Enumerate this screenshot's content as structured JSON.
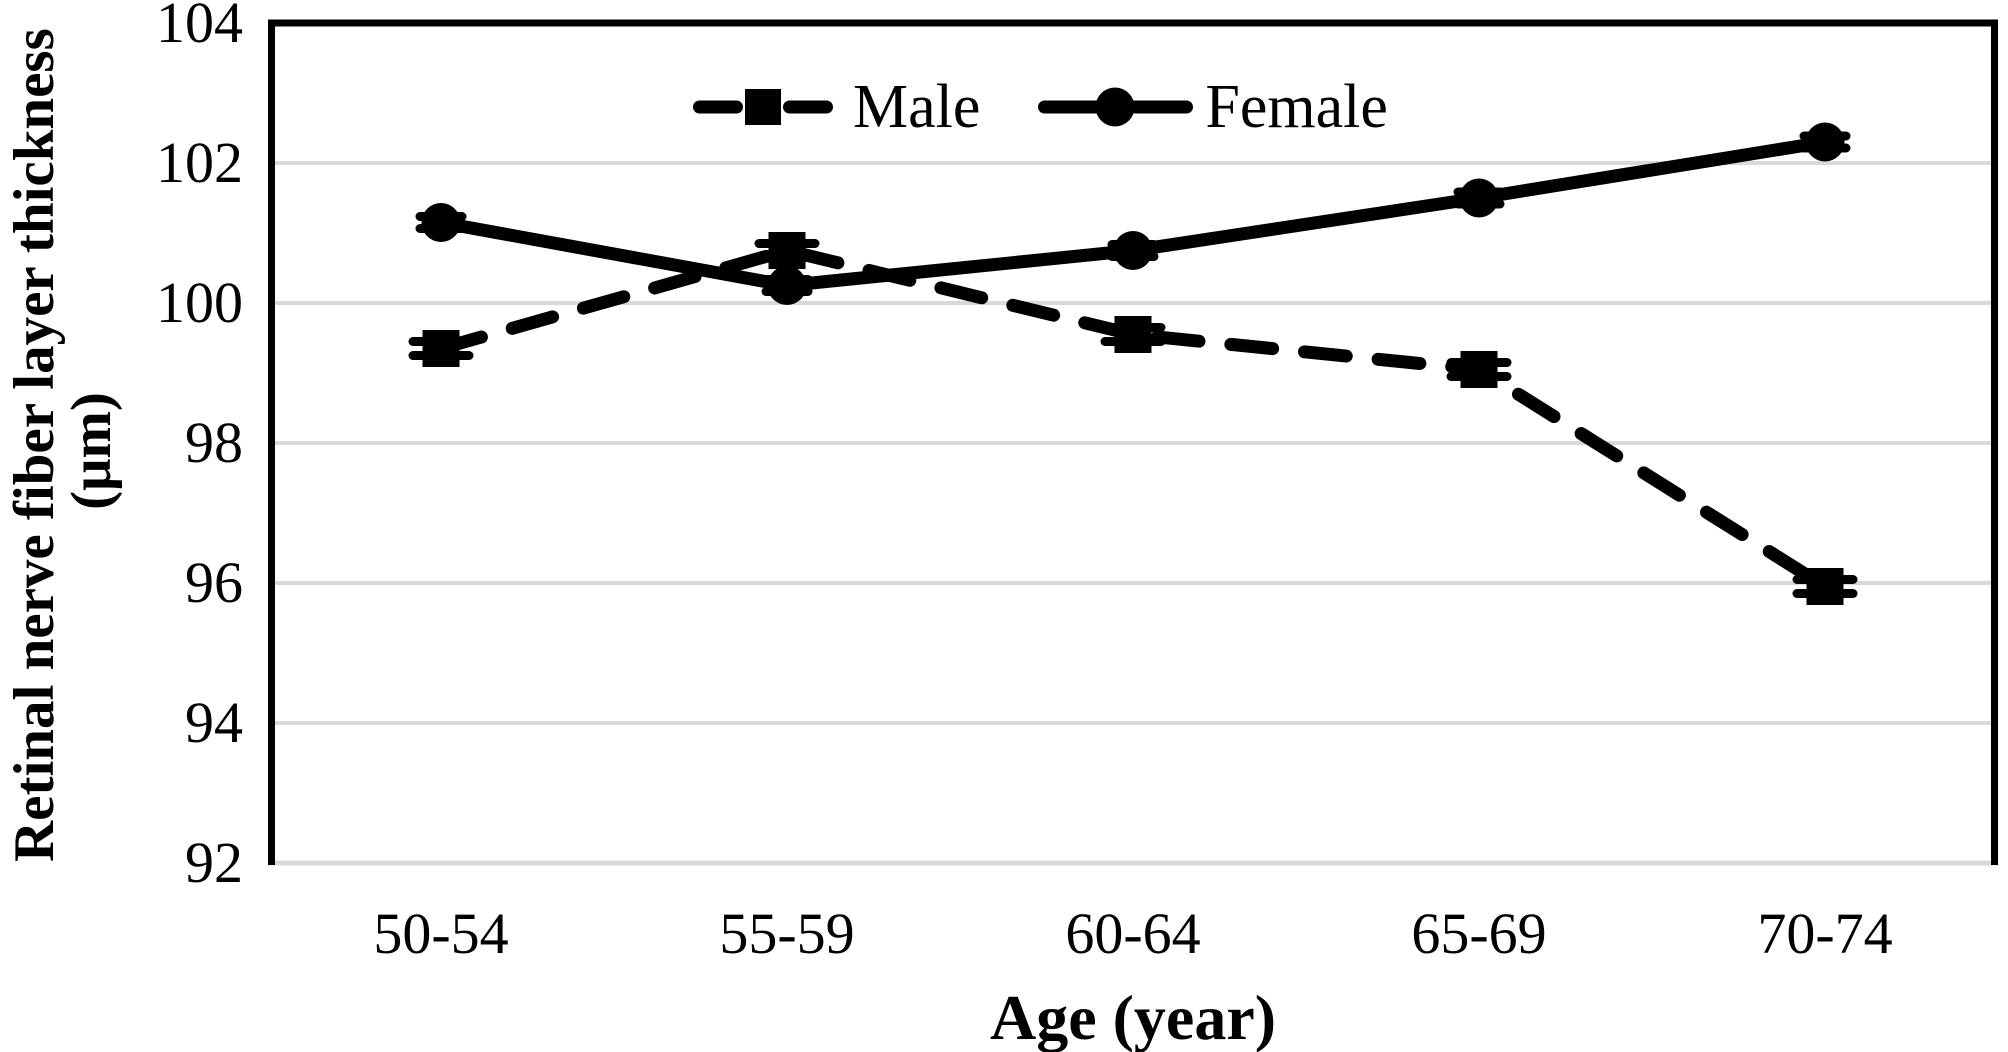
{
  "figure": {
    "y_axis_title": "Retinal nerve fiber layer thickness",
    "y_axis_title_unit": "(μm)",
    "x_axis_title": "Age (year)"
  },
  "colors": {
    "series": "#000000",
    "gridline": "#d9d9d9",
    "background": "#ffffff"
  },
  "chart_data": {
    "type": "line",
    "title": "",
    "categories": [
      "50-54",
      "55-59",
      "60-64",
      "65-69",
      "70-74"
    ],
    "series": [
      {
        "name": "Male",
        "values": [
          99.35,
          100.75,
          99.55,
          99.05,
          95.95
        ],
        "line_style": "dashed",
        "marker": "square",
        "color": "#000000"
      },
      {
        "name": "Female",
        "values": [
          101.15,
          100.25,
          100.75,
          101.5,
          102.3
        ],
        "line_style": "solid",
        "marker": "circle",
        "color": "#000000"
      }
    ],
    "xlabel": "Age (year)",
    "ylabel": "Retinal nerve fiber layer thickness (μm)",
    "ylim": [
      92,
      104
    ],
    "yticks": [
      92,
      94,
      96,
      98,
      100,
      102,
      104
    ],
    "grid": "horizontal",
    "gridline_color": "#d9d9d9",
    "legend_position": "top-center-inside",
    "error_bars": "tiny standard-error caps (~±0.1 μm) visible at data points"
  }
}
